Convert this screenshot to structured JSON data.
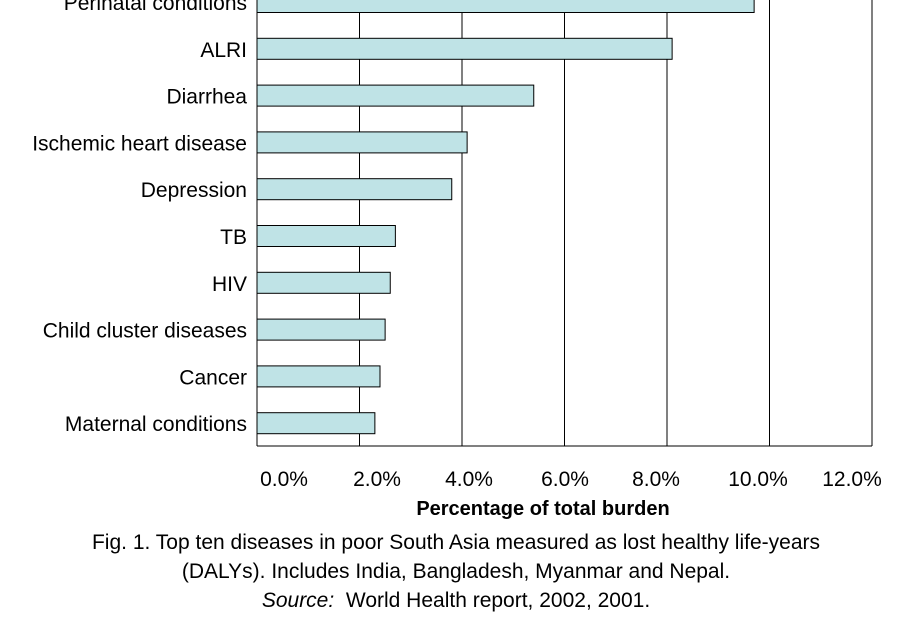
{
  "chart_data": {
    "type": "bar",
    "orientation": "horizontal",
    "categories": [
      "Perinatal conditions",
      "ALRI",
      "Diarrhea",
      "Ischemic heart disease",
      "Depression",
      "TB",
      "HIV",
      "Child cluster diseases",
      "Cancer",
      "Maternal conditions"
    ],
    "values": [
      9.7,
      8.1,
      5.4,
      4.1,
      3.8,
      2.7,
      2.6,
      2.5,
      2.4,
      2.3
    ],
    "xlim": [
      0,
      12
    ],
    "xticks": [
      "0.0%",
      "2.0%",
      "4.0%",
      "6.0%",
      "8.0%",
      "10.0%",
      "12.0%"
    ],
    "xlabel": "Percentage of total burden",
    "ylabel": "",
    "grid": "vertical",
    "bar_color": "#bfe3e6",
    "bar_edge_color": "#000000"
  },
  "caption": {
    "line1": "Fig. 1. Top ten diseases in poor South Asia measured as lost healthy life-years",
    "line2": "(DALYs). Includes India, Bangladesh, Myanmar and Nepal.",
    "source_label": "Source:",
    "source_text": "  World Health report, 2002, 2001."
  }
}
